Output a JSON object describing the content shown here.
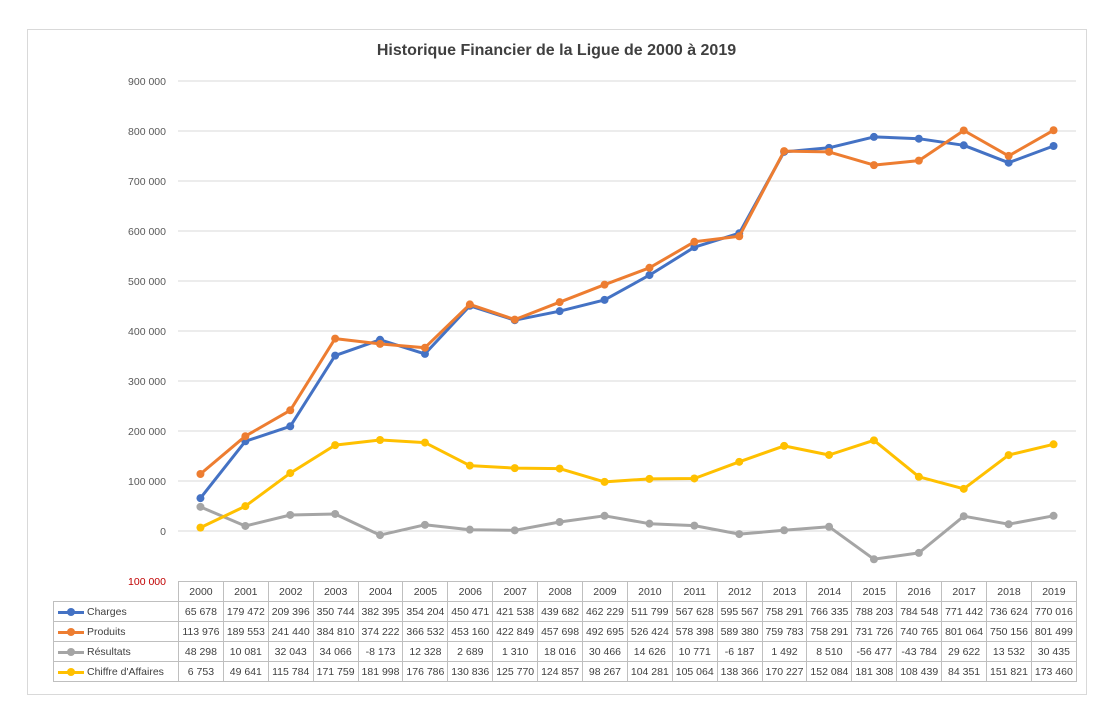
{
  "chart_data": {
    "type": "line",
    "title": "Historique Financier de la Ligue de 2000 à 2019",
    "categories": [
      "2000",
      "2001",
      "2002",
      "2003",
      "2004",
      "2005",
      "2006",
      "2007",
      "2008",
      "2009",
      "2010",
      "2011",
      "2012",
      "2013",
      "2014",
      "2015",
      "2016",
      "2017",
      "2018",
      "2019"
    ],
    "y_tick_labels": [
      "900 000",
      "800 000",
      "700 000",
      "600 000",
      "500 000",
      "400 000",
      "300 000",
      "200 000",
      "100 000",
      "0",
      "100 000"
    ],
    "y_ticks": [
      900000,
      800000,
      700000,
      600000,
      500000,
      400000,
      300000,
      200000,
      100000,
      0,
      -100000
    ],
    "ylim": [
      -100000,
      900000
    ],
    "grid": true,
    "legend": "data-table-below",
    "series": [
      {
        "name": "Charges",
        "color": "#4472c4",
        "values": [
          65678,
          179472,
          209396,
          350744,
          382395,
          354204,
          450471,
          421538,
          439682,
          462229,
          511799,
          567628,
          595567,
          758291,
          766335,
          788203,
          784548,
          771442,
          736624,
          770016
        ],
        "labels": [
          "65 678",
          "179 472",
          "209 396",
          "350 744",
          "382 395",
          "354 204",
          "450 471",
          "421 538",
          "439 682",
          "462 229",
          "511 799",
          "567 628",
          "595 567",
          "758 291",
          "766 335",
          "788 203",
          "784 548",
          "771 442",
          "736 624",
          "770 016"
        ]
      },
      {
        "name": "Produits",
        "color": "#ed7d31",
        "values": [
          113976,
          189553,
          241440,
          384810,
          374222,
          366532,
          453160,
          422849,
          457698,
          492695,
          526424,
          578398,
          589380,
          759783,
          758291,
          731726,
          740765,
          801064,
          750156,
          801499
        ],
        "labels": [
          "113 976",
          "189 553",
          "241 440",
          "384 810",
          "374 222",
          "366 532",
          "453 160",
          "422 849",
          "457 698",
          "492 695",
          "526 424",
          "578 398",
          "589 380",
          "759 783",
          "758 291",
          "731 726",
          "740 765",
          "801 064",
          "750 156",
          "801 499"
        ]
      },
      {
        "name": "Résultats",
        "color": "#a5a5a5",
        "values": [
          48298,
          10081,
          32043,
          34066,
          -8173,
          12328,
          2689,
          1310,
          18016,
          30466,
          14626,
          10771,
          -6187,
          1492,
          8510,
          -56477,
          -43784,
          29622,
          13532,
          30435
        ],
        "labels": [
          "48 298",
          "10 081",
          "32 043",
          "34 066",
          "-8 173",
          "12 328",
          "2 689",
          "1 310",
          "18 016",
          "30 466",
          "14 626",
          "10 771",
          "-6 187",
          "1 492",
          "8 510",
          "-56 477",
          "-43 784",
          "29 622",
          "13 532",
          "30 435"
        ]
      },
      {
        "name": "Chiffre d'Affaires",
        "color": "#ffc000",
        "values": [
          6753,
          49641,
          115784,
          171759,
          181998,
          176786,
          130836,
          125770,
          124857,
          98267,
          104281,
          105064,
          138366,
          170227,
          152084,
          181308,
          108439,
          84351,
          151821,
          173460
        ],
        "labels": [
          "6 753",
          "49 641",
          "115 784",
          "171 759",
          "181 998",
          "176 786",
          "130 836",
          "125 770",
          "124 857",
          "98 267",
          "104 281",
          "105 064",
          "138 366",
          "170 227",
          "152 084",
          "181 308",
          "108 439",
          "84 351",
          "151 821",
          "173 460"
        ]
      }
    ]
  }
}
